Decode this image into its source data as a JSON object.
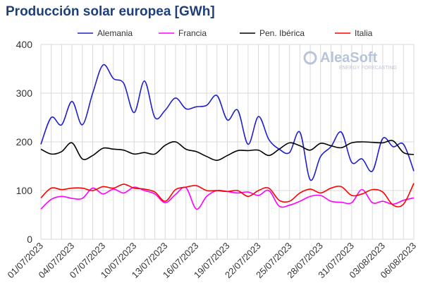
{
  "chart_data": {
    "type": "line",
    "title": "Producción solar europea [GWh]",
    "watermark": {
      "name": "AleaSoft",
      "tagline": "ENERGY FORECASTING"
    },
    "categories": [
      "01/07/2023",
      null,
      null,
      "04/07/2023",
      null,
      null,
      "07/07/2023",
      null,
      null,
      "10/07/2023",
      null,
      null,
      "13/07/2023",
      null,
      null,
      "16/07/2023",
      null,
      null,
      "19/07/2023",
      null,
      null,
      "22/07/2023",
      null,
      null,
      "25/07/2023",
      null,
      null,
      "28/07/2023",
      null,
      null,
      "31/07/2023",
      null,
      null,
      "03/08/2023",
      null,
      null,
      "06/08/2023"
    ],
    "series": [
      {
        "name": "Alemania",
        "color": "#1f1fcc",
        "values": [
          195,
          250,
          235,
          283,
          235,
          300,
          358,
          330,
          320,
          260,
          325,
          250,
          265,
          290,
          268,
          272,
          275,
          295,
          245,
          265,
          195,
          252,
          205,
          185,
          178,
          220,
          122,
          170,
          190,
          220,
          158,
          165,
          140,
          207,
          190,
          195,
          140
        ]
      },
      {
        "name": "Francia",
        "color": "#ff00ff",
        "values": [
          62,
          82,
          88,
          84,
          84,
          105,
          93,
          103,
          95,
          107,
          100,
          93,
          75,
          92,
          106,
          62,
          88,
          100,
          98,
          95,
          97,
          90,
          100,
          68,
          70,
          78,
          88,
          90,
          78,
          76,
          75,
          102,
          75,
          78,
          72,
          80,
          85
        ]
      },
      {
        "name": "Pen. Ibérica",
        "color": "#000000",
        "values": [
          185,
          175,
          180,
          198,
          165,
          172,
          187,
          185,
          183,
          175,
          178,
          175,
          193,
          200,
          185,
          180,
          170,
          162,
          172,
          182,
          182,
          183,
          172,
          185,
          198,
          192,
          183,
          197,
          192,
          188,
          198,
          200,
          199,
          198,
          202,
          178,
          174
        ]
      },
      {
        "name": "Italia",
        "color": "#ff0000",
        "values": [
          85,
          105,
          102,
          105,
          105,
          100,
          108,
          105,
          113,
          105,
          103,
          97,
          78,
          102,
          107,
          110,
          100,
          100,
          98,
          100,
          88,
          100,
          105,
          80,
          78,
          95,
          103,
          95,
          105,
          108,
          90,
          93,
          102,
          97,
          70,
          72,
          115
        ]
      }
    ],
    "ylim": [
      0,
      400
    ],
    "yticks": [
      0,
      100,
      200,
      300,
      400
    ],
    "grid": true
  }
}
